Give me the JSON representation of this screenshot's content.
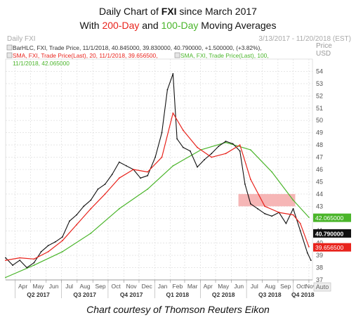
{
  "header": {
    "title_pre": "Daily Chart of ",
    "title_ticker": "FXI",
    "title_post": " since March 2017",
    "sub_pre": "With ",
    "sub_200": "200-Day",
    "sub_mid": " and ",
    "sub_100": "100-Day",
    "sub_post": " Moving Averages"
  },
  "chart_header": {
    "left": "Daily FXI",
    "right": "3/13/2017 - 11/20/2018 (EST)",
    "price_label": "Price",
    "currency": "USD"
  },
  "legend": {
    "bar_line": "BarHLC, FXI, Trade Price, 11/1/2018, 40.845000, 39.830000, 40.790000, +1.500000, (+3.82%),",
    "sma20_line": "SMA, FXI, Trade Price(Last),  20,  11/1/2018, 39.656500,",
    "sma100_line": "SMA, FXI, Trade Price(Last),  100,",
    "sma100_line2": "11/1/2018, 42.065000"
  },
  "footer": "Chart courtesy of Thomson Reuters Eikon",
  "auto_label": "Auto",
  "colors": {
    "price": "#111111",
    "sma20": "#e8231c",
    "sma100": "#4ab52a",
    "highlight": "#f4a9a9",
    "grid": "#d8d8d8"
  },
  "chart_data": {
    "type": "line",
    "ylim": [
      37,
      55
    ],
    "y_ticks": [
      37,
      38,
      39,
      40,
      41,
      42,
      43,
      44,
      45,
      46,
      47,
      48,
      49,
      50,
      51,
      52,
      53,
      54
    ],
    "x_months": [
      "Apr",
      "May",
      "Jun",
      "Jul",
      "Aug",
      "Sep",
      "Oct",
      "Nov",
      "Dec",
      "Jan",
      "Feb",
      "Mar",
      "Apr",
      "May",
      "Jun",
      "Jul",
      "Aug",
      "Sep",
      "Oct",
      "Nov"
    ],
    "x_quarters": [
      "Q2 2017",
      "Q3 2017",
      "Q4 2017",
      "Q1 2018",
      "Q2 2018",
      "Q3 2018",
      "Q4 2018"
    ],
    "last_values": [
      {
        "value": "42.065000",
        "series": "sma100"
      },
      {
        "value": "40.790000",
        "series": "price"
      },
      {
        "value": "39.656500",
        "series": "sma20"
      }
    ],
    "highlight_zone": {
      "y_range": [
        43,
        44
      ],
      "x_range": [
        "2018-06-15",
        "2018-10-05"
      ]
    },
    "series": [
      {
        "key": "price",
        "x": [
          "2017-03-13",
          "2017-03-27",
          "2017-04-10",
          "2017-04-24",
          "2017-05-08",
          "2017-05-22",
          "2017-06-05",
          "2017-06-19",
          "2017-07-03",
          "2017-07-17",
          "2017-07-31",
          "2017-08-14",
          "2017-08-28",
          "2017-09-11",
          "2017-09-25",
          "2017-10-09",
          "2017-10-23",
          "2017-11-06",
          "2017-11-20",
          "2017-12-04",
          "2017-12-18",
          "2018-01-02",
          "2018-01-15",
          "2018-01-26",
          "2018-02-06",
          "2018-02-14",
          "2018-02-26",
          "2018-03-12",
          "2018-03-26",
          "2018-04-09",
          "2018-04-23",
          "2018-05-07",
          "2018-05-21",
          "2018-06-04",
          "2018-06-18",
          "2018-06-28",
          "2018-07-09",
          "2018-07-23",
          "2018-08-06",
          "2018-08-20",
          "2018-09-03",
          "2018-09-17",
          "2018-10-01",
          "2018-10-15",
          "2018-10-29",
          "2018-11-05"
        ],
        "values": [
          38.8,
          38.2,
          38.6,
          38.0,
          38.4,
          39.3,
          39.8,
          40.1,
          40.5,
          41.8,
          42.3,
          43.0,
          43.5,
          44.4,
          44.8,
          45.6,
          46.6,
          46.3,
          46.0,
          45.3,
          45.5,
          47.0,
          49.0,
          52.5,
          53.8,
          48.5,
          47.8,
          47.5,
          46.2,
          46.8,
          47.3,
          47.9,
          48.3,
          48.1,
          47.5,
          44.8,
          43.2,
          42.8,
          42.4,
          42.2,
          42.5,
          41.6,
          42.8,
          41.0,
          39.2,
          38.6
        ]
      },
      {
        "key": "sma20",
        "x": [
          "2017-03-13",
          "2017-04-10",
          "2017-05-08",
          "2017-06-05",
          "2017-07-03",
          "2017-07-31",
          "2017-08-28",
          "2017-09-25",
          "2017-10-23",
          "2017-11-20",
          "2017-12-18",
          "2018-01-15",
          "2018-02-06",
          "2018-02-26",
          "2018-03-26",
          "2018-04-23",
          "2018-05-21",
          "2018-06-18",
          "2018-07-09",
          "2018-08-06",
          "2018-09-03",
          "2018-10-01",
          "2018-10-15",
          "2018-11-01"
        ],
        "values": [
          38.6,
          38.8,
          38.7,
          39.3,
          40.2,
          41.5,
          42.8,
          44.0,
          45.3,
          46.0,
          45.8,
          47.0,
          50.6,
          49.2,
          47.8,
          47.0,
          47.3,
          48.0,
          45.2,
          43.0,
          42.5,
          42.3,
          41.6,
          39.7
        ]
      },
      {
        "key": "sma100",
        "x": [
          "2017-03-13",
          "2017-05-08",
          "2017-07-03",
          "2017-08-28",
          "2017-10-23",
          "2017-12-18",
          "2018-02-06",
          "2018-04-02",
          "2018-05-21",
          "2018-07-09",
          "2018-08-20",
          "2018-10-01",
          "2018-11-01"
        ],
        "values": [
          37.2,
          38.2,
          39.3,
          40.8,
          42.8,
          44.4,
          46.3,
          47.6,
          48.2,
          47.6,
          45.8,
          43.5,
          42.1
        ]
      }
    ]
  }
}
